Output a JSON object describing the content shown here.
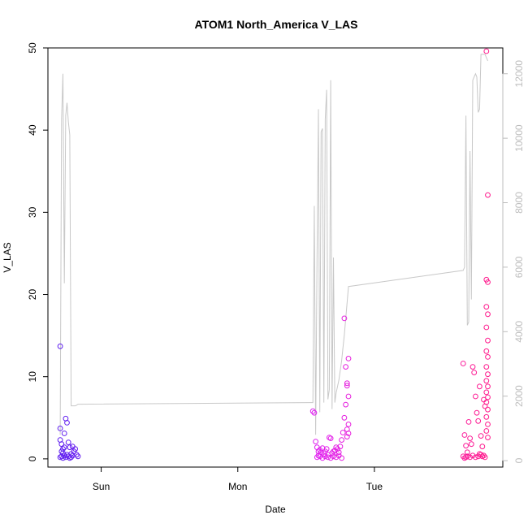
{
  "chart_data": {
    "type": "scatter",
    "title": "ATOM1 North_America V_LAS",
    "xlabel": "Date",
    "ylabel": "V_LAS",
    "x_ticks": [
      "Sun",
      "Mon",
      "Tue"
    ],
    "x_range_days": [
      -0.39,
      2.94
    ],
    "ylim": [
      -1,
      50
    ],
    "y_ticks": [
      0,
      10,
      20,
      30,
      40,
      50
    ],
    "secondary_ylim": [
      -200,
      12800
    ],
    "secondary_y_ticks": [
      0,
      2000,
      4000,
      6000,
      8000,
      10000,
      12000
    ],
    "colors": {
      "start": "#6020f0",
      "mid": "#e020f0",
      "end": "#ff1a8c",
      "line": "#c8c8c8"
    },
    "line_series": {
      "x": [
        -0.3,
        -0.29,
        -0.28,
        -0.27,
        -0.26,
        -0.25,
        -0.24,
        -0.23,
        -0.22,
        -0.21,
        -0.2,
        -0.19,
        -0.18,
        -0.17,
        1.55,
        1.56,
        1.57,
        1.58,
        1.59,
        1.6,
        1.61,
        1.62,
        1.63,
        1.64,
        1.65,
        1.66,
        1.67,
        1.68,
        1.69,
        1.7,
        1.71,
        1.72,
        1.73,
        1.74,
        1.75,
        1.76,
        1.77,
        1.78,
        1.79,
        1.8,
        1.81,
        2.65,
        2.66,
        2.67,
        2.68,
        2.69,
        2.7,
        2.71,
        2.72,
        2.73,
        2.74,
        2.75,
        2.76,
        2.77,
        2.78,
        2.79,
        2.8,
        2.81,
        2.82,
        2.83
      ],
      "y": [
        800,
        10600,
        12000,
        5500,
        10700,
        11100,
        10500,
        10100,
        1700,
        1700,
        1700,
        1700,
        1720,
        1750,
        1800,
        7900,
        800,
        6300,
        10900,
        1500,
        10200,
        10300,
        1800,
        10600,
        11500,
        1900,
        2200,
        11800,
        1600,
        6300,
        1800,
        2100,
        2300,
        2500,
        2800,
        3100,
        3500,
        3900,
        4400,
        4900,
        5400,
        5900,
        6000,
        10700,
        4200,
        4300,
        9600,
        5000,
        11800,
        11900,
        12000,
        11900,
        10800,
        10900,
        12600,
        12600,
        12600,
        12600,
        12500,
        12400
      ],
      "y_axis": "secondary"
    },
    "scatter_series": {
      "x": [
        -0.3,
        -0.3,
        -0.3,
        -0.29,
        -0.29,
        -0.28,
        -0.28,
        -0.27,
        -0.27,
        -0.26,
        -0.25,
        -0.24,
        -0.23,
        -0.22,
        -0.21,
        -0.2,
        -0.19,
        -0.18,
        -0.17,
        -0.3,
        -0.29,
        -0.28,
        -0.27,
        -0.26,
        -0.25,
        -0.24,
        -0.23,
        -0.22,
        -0.21,
        1.55,
        1.56,
        1.57,
        1.58,
        1.59,
        1.6,
        1.61,
        1.62,
        1.63,
        1.64,
        1.65,
        1.66,
        1.67,
        1.68,
        1.69,
        1.7,
        1.71,
        1.72,
        1.73,
        1.74,
        1.75,
        1.76,
        1.77,
        1.78,
        1.79,
        1.8,
        1.81,
        1.78,
        1.79,
        1.8,
        1.81,
        1.8,
        1.81,
        1.8,
        1.81,
        1.6,
        1.58,
        1.59,
        1.62,
        1.64,
        1.66,
        1.68,
        1.7,
        1.72,
        1.74,
        1.76,
        2.65,
        2.66,
        2.67,
        2.68,
        2.69,
        2.7,
        2.71,
        2.72,
        2.73,
        2.74,
        2.75,
        2.76,
        2.77,
        2.78,
        2.79,
        2.8,
        2.81,
        2.82,
        2.83,
        2.82,
        2.83,
        2.82,
        2.83,
        2.82,
        2.83,
        2.82,
        2.83,
        2.82,
        2.83,
        2.82,
        2.83,
        2.82,
        2.83,
        2.82,
        2.83,
        2.82,
        2.83,
        2.82,
        2.83,
        2.76,
        2.78,
        2.74,
        2.72,
        2.7,
        2.77,
        2.79,
        2.8,
        2.81,
        2.65,
        2.66,
        2.67,
        2.68
      ],
      "y": [
        13.7,
        3.7,
        2.3,
        1.8,
        0.9,
        1.2,
        0.7,
        3.1,
        1.4,
        4.9,
        4.4,
        2.0,
        1.4,
        0.6,
        1.5,
        0.9,
        1.2,
        0.5,
        0.3,
        0.2,
        0.3,
        0.1,
        0.4,
        0.2,
        0.5,
        0.3,
        0.1,
        0.2,
        0.4,
        5.8,
        5.6,
        2.1,
        1.4,
        0.9,
        1.1,
        0.8,
        1.3,
        0.6,
        0.9,
        1.2,
        0.5,
        2.6,
        2.5,
        0.7,
        0.9,
        1.0,
        1.4,
        1.2,
        0.8,
        1.5,
        2.3,
        3.2,
        5.0,
        6.6,
        9.2,
        12.2,
        17.1,
        11.2,
        8.9,
        7.6,
        3.6,
        3.1,
        2.7,
        4.2,
        0.3,
        0.2,
        0.4,
        0.1,
        0.3,
        0.2,
        0.1,
        0.3,
        0.2,
        0.4,
        0.1,
        11.6,
        2.9,
        1.6,
        0.8,
        4.5,
        2.5,
        1.8,
        11.2,
        10.5,
        7.6,
        5.6,
        4.6,
        8.8,
        2.8,
        1.5,
        7.2,
        6.4,
        49.6,
        32.1,
        21.8,
        21.5,
        18.5,
        17.6,
        16.0,
        14.4,
        13.1,
        12.4,
        11.2,
        10.3,
        9.5,
        8.8,
        8.1,
        7.5,
        6.9,
        6.0,
        5.1,
        4.2,
        3.4,
        2.6,
        0.3,
        0.5,
        0.2,
        0.4,
        0.2,
        0.6,
        0.3,
        0.4,
        0.2,
        0.3,
        0.1,
        0.2,
        0.3
      ],
      "y_axis": "primary"
    }
  }
}
